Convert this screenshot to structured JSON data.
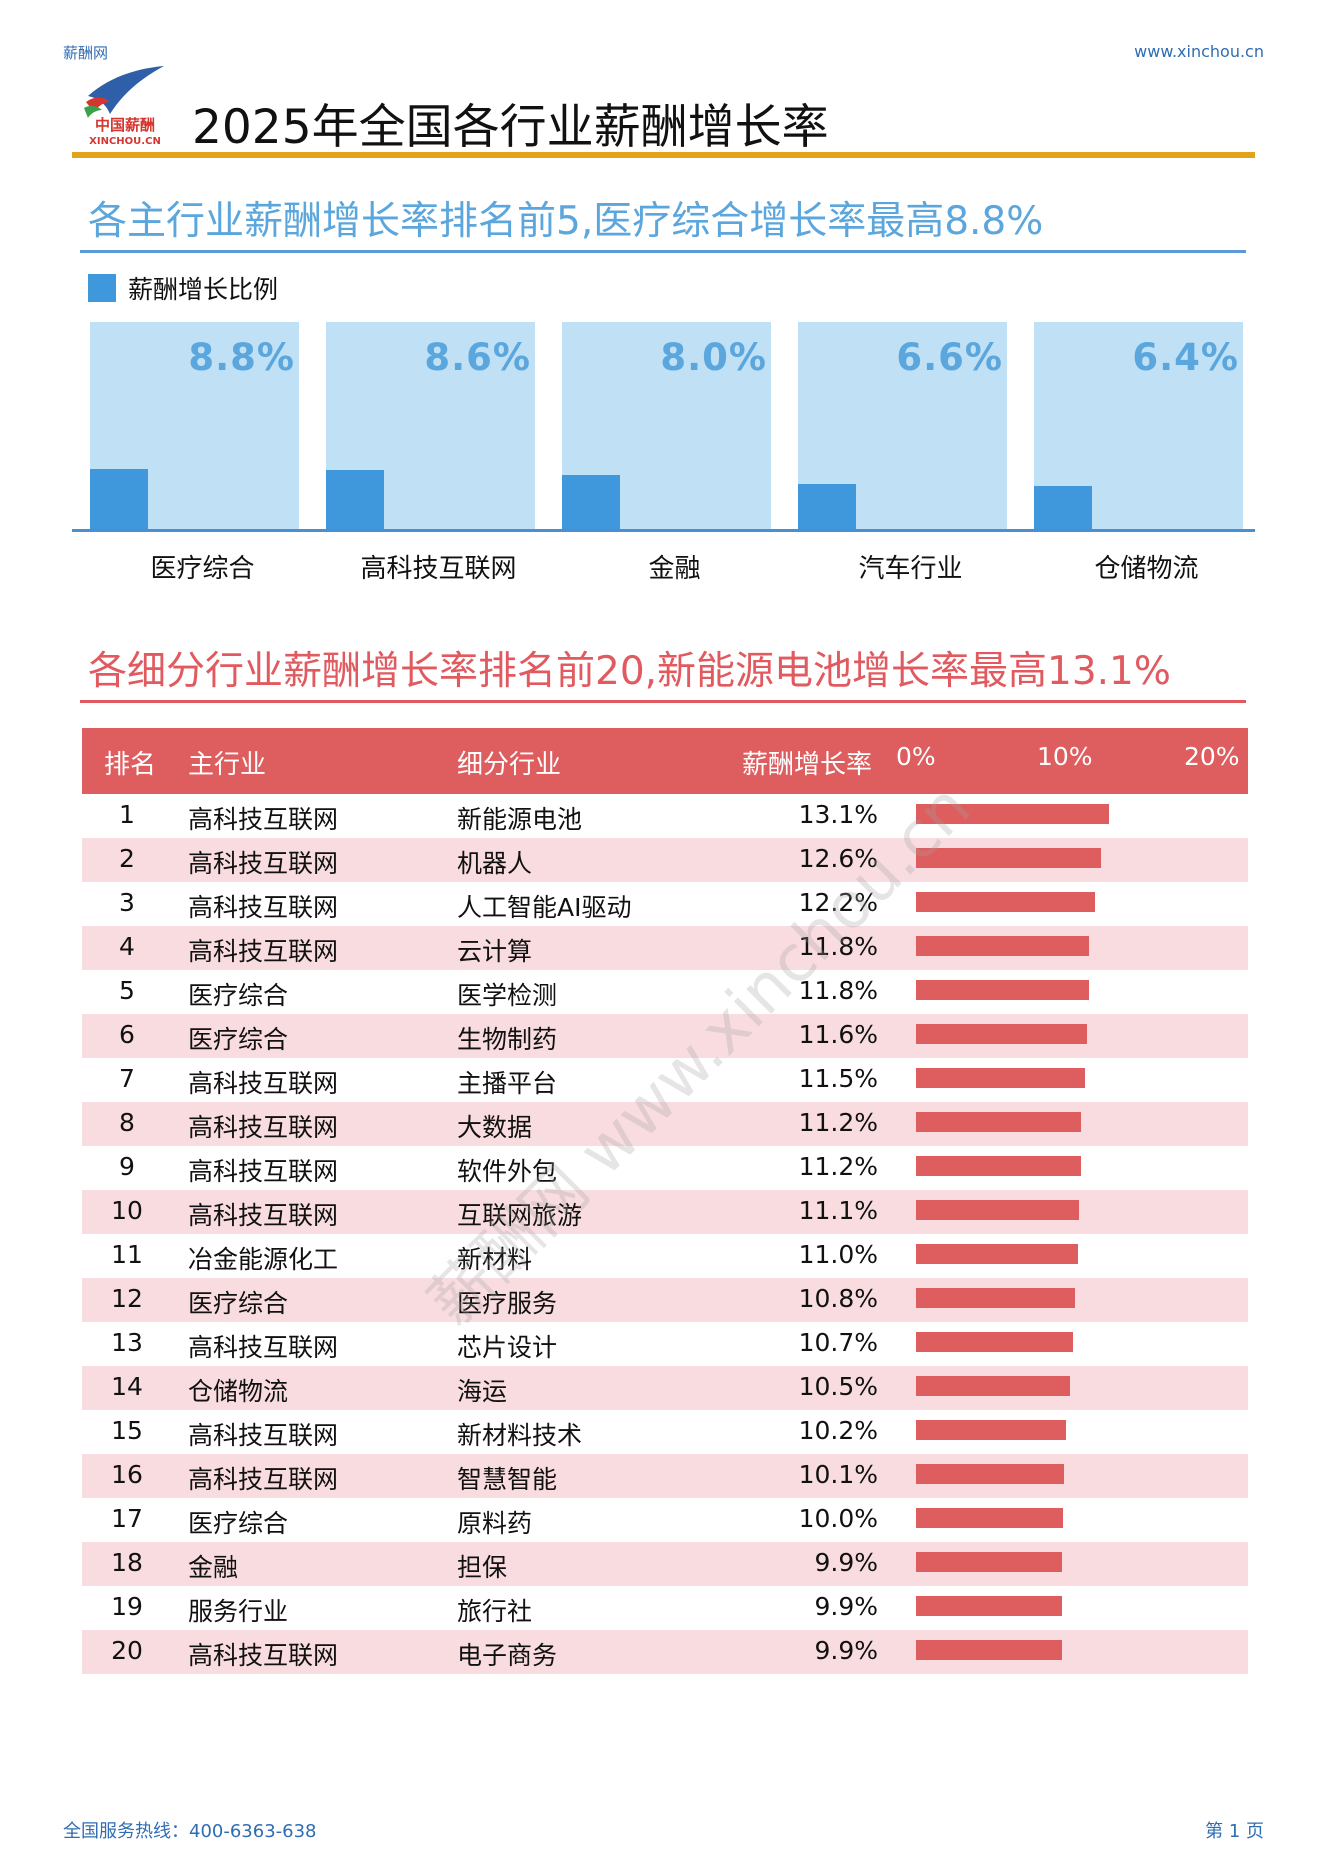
{
  "header": {
    "site_name": "薪酬网",
    "site_url": "www.xinchou.cn",
    "title": "2025年全国各行业薪酬增长率",
    "logo_text": "中国薪酬",
    "logo_sub": "XINCHOU.CN"
  },
  "colors": {
    "blue_accent": "#3f97dc",
    "blue_panel": "#bfe0f5",
    "red_accent": "#de5d5e",
    "row_alt": "#f8dcdf",
    "gold": "#e3a21a"
  },
  "section1": {
    "title": "各主行业薪酬增长率排名前5,医疗综合增长率最高8.8%",
    "legend": "薪酬增长比例"
  },
  "section2": {
    "title": "各细分行业薪酬增长率排名前20,新能源电池增长率最高13.1%",
    "headers": {
      "rank": "排名",
      "main": "主行业",
      "sub": "细分行业",
      "rate": "薪酬增长率"
    },
    "ticks": [
      "0%",
      "10%",
      "20%"
    ]
  },
  "watermark": "薪酬网 www.xinchou.cn",
  "footer": {
    "hotline": "全国服务热线：400-6363-638",
    "page": "第 1 页"
  },
  "chart_data": [
    {
      "type": "bar",
      "title": "各主行业薪酬增长率排名前5,医疗综合增长率最高8.8%",
      "legend": [
        "薪酬增长比例"
      ],
      "categories": [
        "医疗综合",
        "高科技互联网",
        "金融",
        "汽车行业",
        "仓储物流"
      ],
      "values": [
        8.8,
        8.6,
        8.0,
        6.6,
        6.4
      ],
      "labels": [
        "8.8%",
        "8.6%",
        "8.0%",
        "6.6%",
        "6.4%"
      ],
      "ylim": [
        0,
        30
      ],
      "xlabel": "",
      "ylabel": ""
    },
    {
      "type": "table",
      "title": "各细分行业薪酬增长率排名前20,新能源电池增长率最高13.1%",
      "xlim": [
        0,
        20
      ],
      "rows": [
        {
          "rank": "1",
          "main": "高科技互联网",
          "sub": "新能源电池",
          "rate": "13.1%",
          "value": 13.1
        },
        {
          "rank": "2",
          "main": "高科技互联网",
          "sub": "机器人",
          "rate": "12.6%",
          "value": 12.6
        },
        {
          "rank": "3",
          "main": "高科技互联网",
          "sub": "人工智能AI驱动",
          "rate": "12.2%",
          "value": 12.2
        },
        {
          "rank": "4",
          "main": "高科技互联网",
          "sub": "云计算",
          "rate": "11.8%",
          "value": 11.8
        },
        {
          "rank": "5",
          "main": "医疗综合",
          "sub": "医学检测",
          "rate": "11.8%",
          "value": 11.8
        },
        {
          "rank": "6",
          "main": "医疗综合",
          "sub": "生物制药",
          "rate": "11.6%",
          "value": 11.6
        },
        {
          "rank": "7",
          "main": "高科技互联网",
          "sub": "主播平台",
          "rate": "11.5%",
          "value": 11.5
        },
        {
          "rank": "8",
          "main": "高科技互联网",
          "sub": "大数据",
          "rate": "11.2%",
          "value": 11.2
        },
        {
          "rank": "9",
          "main": "高科技互联网",
          "sub": "软件外包",
          "rate": "11.2%",
          "value": 11.2
        },
        {
          "rank": "10",
          "main": "高科技互联网",
          "sub": "互联网旅游",
          "rate": "11.1%",
          "value": 11.1
        },
        {
          "rank": "11",
          "main": "冶金能源化工",
          "sub": "新材料",
          "rate": "11.0%",
          "value": 11.0
        },
        {
          "rank": "12",
          "main": "医疗综合",
          "sub": "医疗服务",
          "rate": "10.8%",
          "value": 10.8
        },
        {
          "rank": "13",
          "main": "高科技互联网",
          "sub": "芯片设计",
          "rate": "10.7%",
          "value": 10.7
        },
        {
          "rank": "14",
          "main": "仓储物流",
          "sub": "海运",
          "rate": "10.5%",
          "value": 10.5
        },
        {
          "rank": "15",
          "main": "高科技互联网",
          "sub": "新材料技术",
          "rate": "10.2%",
          "value": 10.2
        },
        {
          "rank": "16",
          "main": "高科技互联网",
          "sub": "智慧智能",
          "rate": "10.1%",
          "value": 10.1
        },
        {
          "rank": "17",
          "main": "医疗综合",
          "sub": "原料药",
          "rate": "10.0%",
          "value": 10.0
        },
        {
          "rank": "18",
          "main": "金融",
          "sub": "担保",
          "rate": "9.9%",
          "value": 9.9
        },
        {
          "rank": "19",
          "main": "服务行业",
          "sub": "旅行社",
          "rate": "9.9%",
          "value": 9.9
        },
        {
          "rank": "20",
          "main": "高科技互联网",
          "sub": "电子商务",
          "rate": "9.9%",
          "value": 9.9
        }
      ]
    }
  ]
}
